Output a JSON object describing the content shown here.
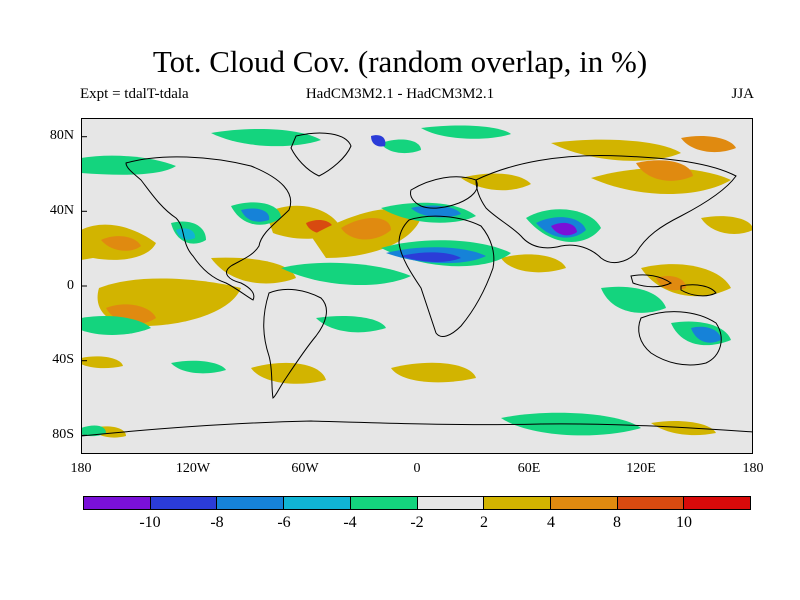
{
  "title": "Tot. Cloud Cov. (random overlap, in %)",
  "subtitle_left": "Expt = tdalT-tdala",
  "subtitle_center": "HadCM3M2.1 - HadCM3M2.1",
  "subtitle_right": "JJA",
  "axes": {
    "y_ticks": [
      {
        "label": "80N",
        "lat": 80
      },
      {
        "label": "40N",
        "lat": 40
      },
      {
        "label": "0",
        "lat": 0
      },
      {
        "label": "40S",
        "lat": -40
      },
      {
        "label": "80S",
        "lat": -80
      }
    ],
    "x_ticks": [
      {
        "label": "180",
        "lon": -180
      },
      {
        "label": "120W",
        "lon": -120
      },
      {
        "label": "60W",
        "lon": -60
      },
      {
        "label": "0",
        "lon": 0
      },
      {
        "label": "60E",
        "lon": 60
      },
      {
        "label": "120E",
        "lon": 120
      },
      {
        "label": "180",
        "lon": 180
      }
    ],
    "lon_range": [
      -180,
      180
    ],
    "lat_range": [
      -90,
      90
    ]
  },
  "colorbar": {
    "colors": [
      "#7a10d8",
      "#2b3cd8",
      "#1682d8",
      "#10b4d4",
      "#14d47e",
      "#e6e6e6",
      "#d2b400",
      "#e08a10",
      "#d84a10",
      "#d80a0a"
    ],
    "labels": [
      {
        "text": "-10",
        "boundary": 1
      },
      {
        "text": "-8",
        "boundary": 2
      },
      {
        "text": "-6",
        "boundary": 3
      },
      {
        "text": "-4",
        "boundary": 4
      },
      {
        "text": "-2",
        "boundary": 5
      },
      {
        "text": "2",
        "boundary": 6
      },
      {
        "text": "4",
        "boundary": 7
      },
      {
        "text": "8",
        "boundary": 8
      },
      {
        "text": "10",
        "boundary": 9
      }
    ]
  },
  "background_color": "#e6e6e6"
}
